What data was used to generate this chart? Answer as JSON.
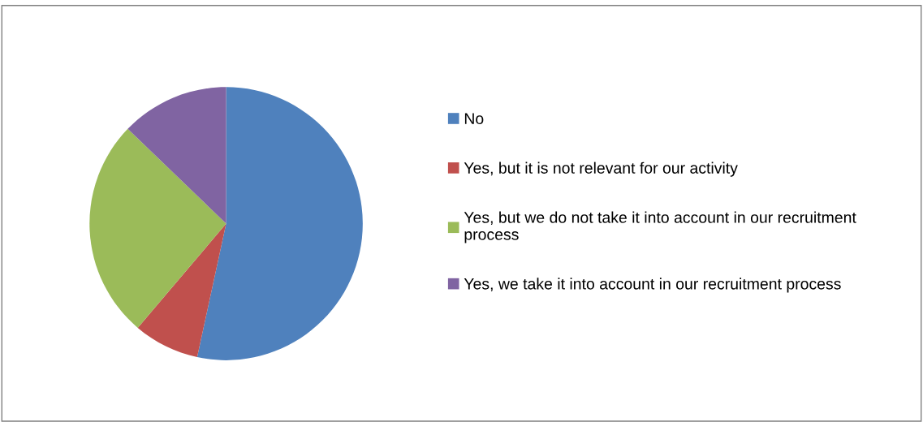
{
  "chart_data": {
    "type": "pie",
    "categories": [
      "No",
      "Yes, but it is not relevant for our activity",
      "Yes, but we do not take it into account in our recruitment process",
      "Yes, we take it into account in our recruitment process"
    ],
    "values": [
      53.4,
      7.8,
      26.0,
      12.8
    ],
    "colors": [
      "#4f81bd",
      "#c0504d",
      "#9bbb59",
      "#8064a2"
    ],
    "legend": "right"
  }
}
